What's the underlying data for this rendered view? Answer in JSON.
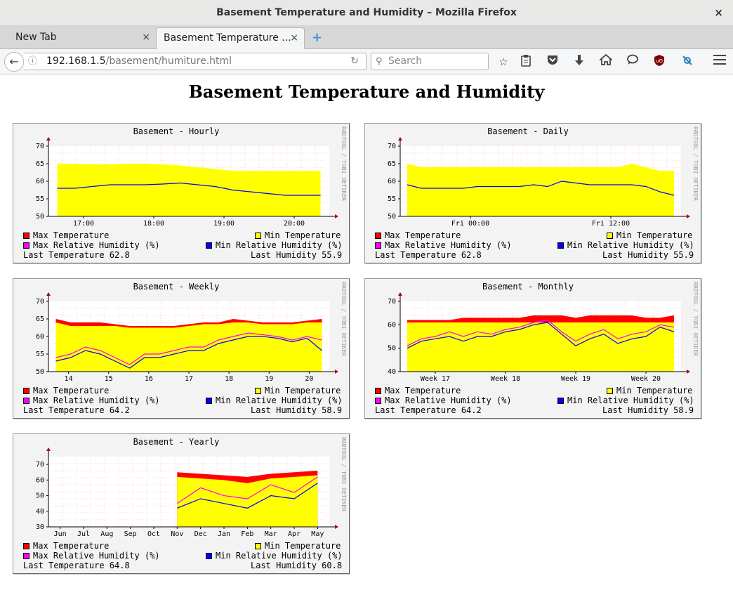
{
  "window": {
    "title": "Basement Temperature and Humidity – Mozilla Firefox",
    "close": "×"
  },
  "tabs": [
    {
      "label": "New Tab",
      "close": "×"
    },
    {
      "label": "Basement Temperature ...",
      "close": "×"
    }
  ],
  "new_tab": "+",
  "nav": {
    "url_host": "192.168.1.5",
    "url_path": "/basement/humiture.html",
    "search_placeholder": "Search"
  },
  "icons": {
    "back": "left-arrow-icon",
    "info": "info-icon",
    "reload": "reload-icon",
    "search": "search-icon",
    "bookmark": "star-icon",
    "library": "clipboard-icon",
    "pocket": "pocket-icon",
    "downloads": "download-arrow-icon",
    "home": "home-icon",
    "chat": "speech-bubble-icon",
    "ublock": "ublock-origin-icon",
    "extension": "puzzle-icon",
    "menu": "hamburger-icon"
  },
  "colors": {
    "max_temp": "#ff0000",
    "min_temp": "#ffff00",
    "max_rh": "#ff00ff",
    "min_rh": "#0000ff",
    "grid": "#ffaaaa"
  },
  "page_title": "Basement Temperature and Humidity",
  "rrd_credit": "RRDTOOL / TOBI OETIKER",
  "legend_labels": {
    "max_temp": "Max Temperature",
    "min_temp": "Min Temperature",
    "max_rh": "Max Relative Humidity (%)",
    "min_rh": "Min Relative Humidity (%)",
    "last_temp": "Last Temperature",
    "last_hum": "Last Humidity"
  },
  "chart_data": [
    {
      "type": "area",
      "title": "Basement - Hourly",
      "ylim": [
        50,
        70
      ],
      "yticks": [
        50,
        55,
        60,
        65,
        70
      ],
      "xticks": [
        "17:00",
        "18:00",
        "19:00",
        "20:00"
      ],
      "series": [
        {
          "name": "Min Temperature",
          "values": [
            65,
            65,
            64.8,
            64.8,
            65,
            65,
            64.8,
            64.5,
            64,
            63.5,
            63,
            63,
            63,
            63,
            63,
            63
          ]
        },
        {
          "name": "Min Relative Humidity (%)",
          "values": [
            58,
            58,
            58.5,
            59,
            59,
            59,
            59.2,
            59.5,
            59,
            58.5,
            57.5,
            57,
            56.5,
            56,
            56,
            56
          ]
        }
      ],
      "last_temperature": "62.8",
      "last_humidity": "55.9"
    },
    {
      "type": "area",
      "title": "Basement - Daily",
      "ylim": [
        50,
        70
      ],
      "yticks": [
        50,
        55,
        60,
        65,
        70
      ],
      "xticks": [
        "Fri 00:00",
        "Fri 12:00"
      ],
      "series": [
        {
          "name": "Min Temperature",
          "values": [
            65,
            64,
            64,
            64,
            64,
            64,
            64,
            64,
            64,
            64,
            64,
            64,
            64,
            64,
            64,
            64,
            65,
            64,
            63,
            63
          ]
        },
        {
          "name": "Min Relative Humidity (%)",
          "values": [
            59,
            58,
            58,
            58,
            58,
            58.5,
            58.5,
            58.5,
            58.5,
            59,
            58.5,
            60,
            59.5,
            59,
            59,
            59,
            59,
            58.5,
            57,
            56
          ]
        }
      ],
      "last_temperature": "62.8",
      "last_humidity": "55.9"
    },
    {
      "type": "area",
      "title": "Basement - Weekly",
      "ylim": [
        50,
        70
      ],
      "yticks": [
        50,
        55,
        60,
        65,
        70
      ],
      "xticks": [
        "14",
        "15",
        "16",
        "17",
        "18",
        "19",
        "20"
      ],
      "series": [
        {
          "name": "Max Temperature",
          "values": [
            65,
            64,
            64,
            64,
            63.5,
            63,
            63,
            63,
            63,
            63.5,
            64,
            64,
            65,
            64.5,
            64,
            64,
            64,
            64.5,
            65
          ]
        },
        {
          "name": "Min Temperature",
          "values": [
            64,
            63,
            63,
            63,
            63,
            62.5,
            62.5,
            62.5,
            62.5,
            63,
            63.5,
            63.5,
            64,
            64,
            63.5,
            63.5,
            63.5,
            64,
            64
          ]
        },
        {
          "name": "Max Relative Humidity (%)",
          "values": [
            54,
            55,
            57,
            56,
            54,
            52,
            55,
            55,
            56,
            57,
            57,
            59,
            60,
            61,
            60.5,
            60,
            59,
            60,
            59
          ]
        },
        {
          "name": "Min Relative Humidity (%)",
          "values": [
            53,
            54,
            56,
            55,
            53,
            51,
            54,
            54,
            55,
            56,
            56,
            58,
            59,
            60,
            60,
            59.5,
            58.5,
            59.5,
            56
          ]
        }
      ],
      "last_temperature": "64.2",
      "last_humidity": "58.9"
    },
    {
      "type": "area",
      "title": "Basement - Monthly",
      "ylim": [
        40,
        70
      ],
      "yticks": [
        40,
        50,
        60,
        70
      ],
      "xticks": [
        "Week 17",
        "Week 18",
        "Week 19",
        "Week 20"
      ],
      "series": [
        {
          "name": "Max Temperature",
          "values": [
            62,
            62,
            62,
            62,
            63,
            63,
            63,
            63,
            63,
            64,
            64,
            64,
            63,
            64,
            64,
            64,
            64,
            63,
            63,
            64
          ]
        },
        {
          "name": "Min Temperature",
          "values": [
            61,
            61,
            61,
            61,
            61,
            61,
            61,
            61,
            61,
            61,
            61,
            61,
            61,
            61,
            61,
            61,
            61,
            61,
            61,
            61
          ]
        },
        {
          "name": "Max Relative Humidity (%)",
          "values": [
            51,
            54,
            55,
            57,
            55,
            57,
            56,
            58,
            59,
            61,
            62,
            57,
            53,
            56,
            58,
            54,
            56,
            57,
            60,
            59
          ]
        },
        {
          "name": "Min Relative Humidity (%)",
          "values": [
            50,
            53,
            54,
            55,
            53,
            55,
            55,
            57,
            58,
            60,
            61,
            56,
            51,
            54,
            56,
            52,
            54,
            55,
            59,
            57
          ]
        }
      ],
      "last_temperature": "64.2",
      "last_humidity": "58.9"
    },
    {
      "type": "area",
      "title": "Basement - Yearly",
      "ylim": [
        30,
        75
      ],
      "yticks": [
        30,
        40,
        50,
        60,
        70
      ],
      "xticks": [
        "Jun",
        "Jul",
        "Aug",
        "Sep",
        "Oct",
        "Nov",
        "Dec",
        "Jan",
        "Feb",
        "Mar",
        "Apr",
        "May"
      ],
      "series": [
        {
          "name": "Max Temperature",
          "values": [
            null,
            null,
            null,
            null,
            null,
            65,
            64,
            63,
            62,
            64,
            65,
            66
          ]
        },
        {
          "name": "Min Temperature",
          "values": [
            null,
            null,
            null,
            null,
            null,
            62,
            61,
            60,
            58,
            61,
            62,
            63
          ]
        },
        {
          "name": "Max Relative Humidity (%)",
          "values": [
            null,
            null,
            null,
            null,
            null,
            45,
            55,
            50,
            48,
            57,
            52,
            62
          ]
        },
        {
          "name": "Min Relative Humidity (%)",
          "values": [
            null,
            null,
            null,
            null,
            null,
            42,
            48,
            45,
            42,
            50,
            48,
            58
          ]
        }
      ],
      "last_temperature": "64.8",
      "last_humidity": "60.8"
    }
  ]
}
